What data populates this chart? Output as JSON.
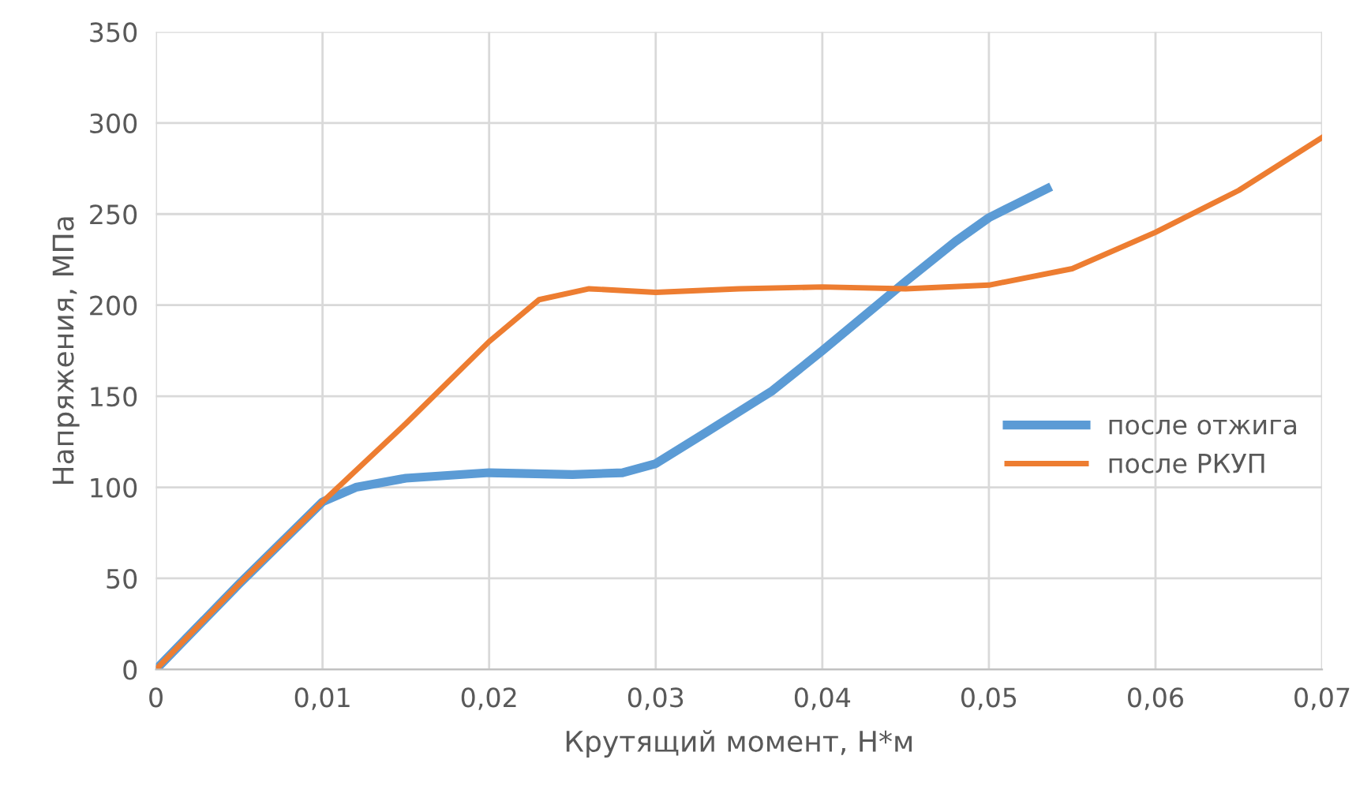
{
  "chart_data": {
    "type": "line",
    "xlabel": "Крутящий момент, Н*м",
    "ylabel": "Напряжения, МПа",
    "xlim": [
      0,
      0.07
    ],
    "ylim": [
      0,
      350
    ],
    "xticks": [
      0,
      {
        "value": 0.01,
        "label": "0,01"
      },
      {
        "value": 0.02,
        "label": "0,02"
      },
      {
        "value": 0.03,
        "label": "0,03"
      },
      {
        "value": 0.04,
        "label": "0,04"
      },
      {
        "value": 0.05,
        "label": "0,05"
      },
      {
        "value": 0.06,
        "label": "0,06"
      },
      {
        "value": 0.07,
        "label": "0,07"
      }
    ],
    "yticks": [
      0,
      50,
      100,
      150,
      200,
      250,
      300,
      350
    ],
    "grid": true,
    "legend": "right",
    "line_style": "solid",
    "marker": "none",
    "series": [
      {
        "name": "после отжига",
        "color": "#5b9bd5",
        "x": [
          0,
          0.005,
          0.01,
          0.012,
          0.015,
          0.02,
          0.025,
          0.028,
          0.03,
          0.033,
          0.037,
          0.04,
          0.045,
          0.048,
          0.05,
          0.0535
        ],
        "values": [
          0,
          47,
          92,
          100,
          105,
          108,
          107,
          108,
          113,
          130,
          153,
          175,
          213,
          235,
          248,
          264
        ]
      },
      {
        "name": "после РКУП",
        "color": "#ed7d31",
        "x": [
          0,
          0.005,
          0.01,
          0.015,
          0.02,
          0.023,
          0.026,
          0.03,
          0.035,
          0.04,
          0.045,
          0.05,
          0.055,
          0.06,
          0.065,
          0.07
        ],
        "values": [
          0,
          47,
          92,
          135,
          180,
          203,
          209,
          207,
          209,
          210,
          209,
          211,
          220,
          240,
          263,
          292
        ]
      }
    ]
  }
}
